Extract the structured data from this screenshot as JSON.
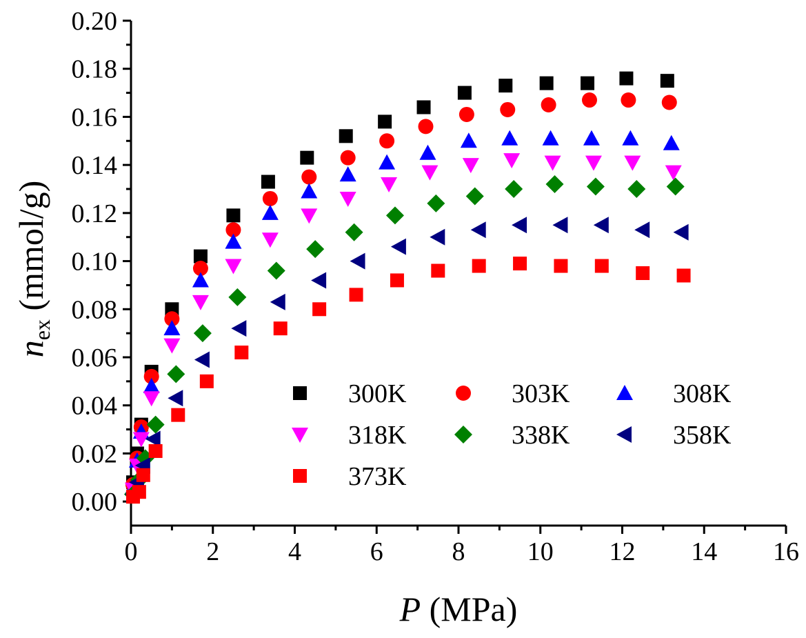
{
  "chart_data": {
    "type": "scatter",
    "title": "",
    "xlabel": {
      "var": "P",
      "unit": " (MPa)"
    },
    "ylabel": {
      "var": "n",
      "sub": "ex",
      "unit": " (mmol/g)"
    },
    "xlim": [
      0,
      16
    ],
    "ylim": [
      -0.01,
      0.2
    ],
    "xticks": [
      0,
      2,
      4,
      6,
      8,
      10,
      12,
      14,
      16
    ],
    "yticks": [
      0.0,
      0.02,
      0.04,
      0.06,
      0.08,
      0.1,
      0.12,
      0.14,
      0.16,
      0.18,
      0.2
    ],
    "xtick_labels": [
      "0",
      "2",
      "4",
      "6",
      "8",
      "10",
      "12",
      "14",
      "16"
    ],
    "ytick_labels": [
      "0.00",
      "0.02",
      "0.04",
      "0.06",
      "0.08",
      "0.10",
      "0.12",
      "0.14",
      "0.16",
      "0.18",
      "0.20"
    ],
    "grid": false,
    "legend_position": "bottom-center",
    "series": [
      {
        "name": "300K",
        "marker": "square",
        "color": "#000000",
        "x": [
          0.05,
          0.15,
          0.25,
          0.5,
          1.0,
          1.7,
          2.5,
          3.35,
          4.3,
          5.25,
          6.2,
          7.15,
          8.15,
          9.15,
          10.15,
          11.15,
          12.1,
          13.1
        ],
        "y": [
          0.008,
          0.02,
          0.032,
          0.054,
          0.08,
          0.102,
          0.119,
          0.133,
          0.143,
          0.152,
          0.158,
          0.164,
          0.17,
          0.173,
          0.174,
          0.174,
          0.176,
          0.175
        ]
      },
      {
        "name": "303K",
        "marker": "circle",
        "color": "#ff0000",
        "x": [
          0.05,
          0.15,
          0.25,
          0.5,
          1.0,
          1.7,
          2.5,
          3.4,
          4.35,
          5.3,
          6.25,
          7.2,
          8.2,
          9.2,
          10.2,
          11.2,
          12.15,
          13.15
        ],
        "y": [
          0.007,
          0.018,
          0.031,
          0.052,
          0.076,
          0.097,
          0.113,
          0.126,
          0.135,
          0.143,
          0.15,
          0.156,
          0.161,
          0.163,
          0.165,
          0.167,
          0.167,
          0.166
        ]
      },
      {
        "name": "308K",
        "marker": "triangle-up",
        "color": "#0000ff",
        "x": [
          0.05,
          0.15,
          0.25,
          0.5,
          1.0,
          1.7,
          2.5,
          3.4,
          4.35,
          5.3,
          6.25,
          7.25,
          8.25,
          9.25,
          10.25,
          11.25,
          12.2,
          13.2
        ],
        "y": [
          0.006,
          0.017,
          0.029,
          0.048,
          0.072,
          0.092,
          0.108,
          0.12,
          0.129,
          0.136,
          0.141,
          0.145,
          0.15,
          0.151,
          0.151,
          0.151,
          0.151,
          0.149
        ]
      },
      {
        "name": "318K",
        "marker": "triangle-down",
        "color": "#ff00ff",
        "x": [
          0.05,
          0.15,
          0.25,
          0.5,
          1.0,
          1.7,
          2.5,
          3.4,
          4.35,
          5.3,
          6.3,
          7.3,
          8.3,
          9.3,
          10.3,
          11.3,
          12.25,
          13.25
        ],
        "y": [
          0.005,
          0.015,
          0.026,
          0.043,
          0.065,
          0.083,
          0.098,
          0.109,
          0.119,
          0.126,
          0.132,
          0.137,
          0.14,
          0.142,
          0.141,
          0.141,
          0.141,
          0.137
        ]
      },
      {
        "name": "338K",
        "marker": "diamond",
        "color": "#008000",
        "x": [
          0.05,
          0.2,
          0.35,
          0.6,
          1.1,
          1.75,
          2.6,
          3.55,
          4.5,
          5.45,
          6.45,
          7.45,
          8.4,
          9.35,
          10.35,
          11.35,
          12.35,
          13.3
        ],
        "y": [
          0.003,
          0.009,
          0.018,
          0.032,
          0.053,
          0.07,
          0.085,
          0.096,
          0.105,
          0.112,
          0.119,
          0.124,
          0.127,
          0.13,
          0.132,
          0.131,
          0.13,
          0.131
        ]
      },
      {
        "name": "358K",
        "marker": "triangle-left",
        "color": "#000080",
        "x": [
          0.05,
          0.15,
          0.3,
          0.55,
          1.1,
          1.75,
          2.65,
          3.6,
          4.6,
          5.55,
          6.55,
          7.5,
          8.5,
          9.5,
          10.5,
          11.5,
          12.5,
          13.45
        ],
        "y": [
          0.003,
          0.008,
          0.015,
          0.026,
          0.043,
          0.059,
          0.072,
          0.083,
          0.092,
          0.1,
          0.106,
          0.11,
          0.113,
          0.115,
          0.115,
          0.115,
          0.113,
          0.112
        ]
      },
      {
        "name": "373K",
        "marker": "square",
        "color": "#ff0000",
        "x": [
          0.05,
          0.2,
          0.3,
          0.6,
          1.15,
          1.85,
          2.7,
          3.65,
          4.6,
          5.5,
          6.5,
          7.5,
          8.5,
          9.5,
          10.5,
          11.5,
          12.5,
          13.5
        ],
        "y": [
          0.002,
          0.004,
          0.011,
          0.021,
          0.036,
          0.05,
          0.062,
          0.072,
          0.08,
          0.086,
          0.092,
          0.096,
          0.098,
          0.099,
          0.098,
          0.098,
          0.095,
          0.094
        ]
      }
    ]
  }
}
